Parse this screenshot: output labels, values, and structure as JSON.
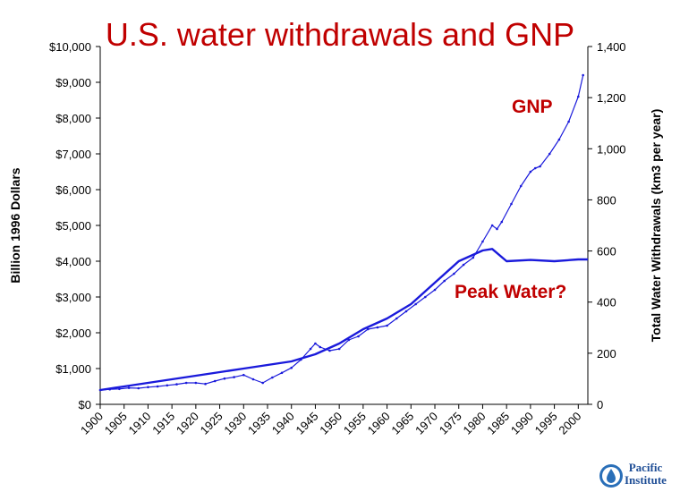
{
  "chart_data": {
    "type": "line",
    "title": "U.S. water withdrawals and GNP",
    "ylabel_left": "Billion 1996 Dollars",
    "ylabel_right": "Total Water Withdrawals (km3 per year)",
    "xlim": [
      1900,
      2002
    ],
    "ylim_left": [
      0,
      10000
    ],
    "ylim_right": [
      0,
      1400
    ],
    "x_ticks": [
      "1900",
      "1905",
      "1910",
      "1915",
      "1920",
      "1925",
      "1930",
      "1935",
      "1940",
      "1945",
      "1950",
      "1955",
      "1960",
      "1965",
      "1970",
      "1975",
      "1980",
      "1985",
      "1990",
      "1995",
      "2000"
    ],
    "left_ticks": [
      "$0",
      "$1,000",
      "$2,000",
      "$3,000",
      "$4,000",
      "$5,000",
      "$6,000",
      "$7,000",
      "$8,000",
      "$9,000",
      "$10,000"
    ],
    "right_ticks": [
      "0",
      "200",
      "400",
      "600",
      "800",
      "1,000",
      "1,200",
      "1,400"
    ],
    "annotations": [
      "GNP",
      "Peak Water?"
    ],
    "color": "#1a1adb",
    "series": [
      {
        "axis": "left",
        "x": [
          1900,
          1902,
          1904,
          1906,
          1908,
          1910,
          1912,
          1914,
          1916,
          1918,
          1920,
          1922,
          1924,
          1926,
          1928,
          1930,
          1932,
          1934,
          1936,
          1938,
          1940,
          1942,
          1944,
          1945,
          1946,
          1948,
          1950,
          1952,
          1954,
          1956,
          1958,
          1960,
          1962,
          1964,
          1966,
          1968,
          1970,
          1972,
          1974,
          1976,
          1978,
          1980,
          1982,
          1983,
          1984,
          1986,
          1988,
          1990,
          1991,
          1992,
          1994,
          1996,
          1998,
          2000,
          2001
        ],
        "values": [
          400,
          420,
          430,
          460,
          450,
          480,
          500,
          530,
          560,
          600,
          600,
          570,
          650,
          720,
          760,
          820,
          700,
          600,
          750,
          880,
          1020,
          1250,
          1550,
          1700,
          1600,
          1500,
          1550,
          1800,
          1900,
          2100,
          2150,
          2200,
          2400,
          2600,
          2800,
          3000,
          3200,
          3450,
          3650,
          3900,
          4100,
          4550,
          5000,
          4900,
          5100,
          5600,
          6100,
          6500,
          6600,
          6650,
          7000,
          7400,
          7900,
          8600,
          9200
        ]
      },
      {
        "axis": "right",
        "x": [
          1900,
          1905,
          1910,
          1915,
          1920,
          1925,
          1930,
          1935,
          1940,
          1945,
          1950,
          1955,
          1960,
          1965,
          1970,
          1975,
          1980,
          1982,
          1985,
          1990,
          1995,
          2000,
          2002
        ],
        "values": [
          56,
          70,
          84,
          98,
          112,
          126,
          140,
          154,
          168,
          196,
          238,
          294,
          336,
          392,
          476,
          560,
          602,
          608,
          560,
          565,
          560,
          567,
          567
        ]
      }
    ]
  },
  "logo": {
    "line1": "Pacific",
    "line2": "Institute",
    "color": "#1f4e96"
  }
}
